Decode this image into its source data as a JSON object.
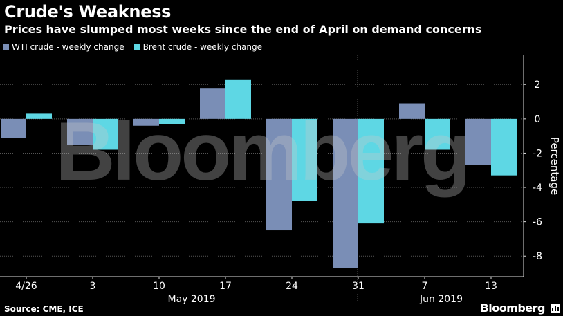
{
  "header": {
    "title": "Crude's Weakness",
    "subtitle": "Prices have slumped most weeks since the end of April on demand concerns"
  },
  "legend": {
    "wti_label": "WTI crude - weekly change",
    "brent_label": "Brent crude - weekly change"
  },
  "footer": {
    "source": "Source: CME, ICE",
    "brand": "Bloomberg",
    "watermark": "Bloomberg"
  },
  "colors": {
    "wti": "#7a8eb6",
    "brent": "#5ed7e4",
    "background": "#000000",
    "grid": "#555555"
  },
  "chart_data": {
    "type": "bar",
    "categories": [
      "4/26",
      "3",
      "10",
      "17",
      "24",
      "31",
      "7",
      "13"
    ],
    "month_labels": [
      "May 2019",
      "Jun 2019"
    ],
    "series": [
      {
        "name": "WTI crude - weekly change",
        "values": [
          -1.1,
          -1.5,
          -0.4,
          1.8,
          -6.5,
          -8.7,
          0.9,
          -2.7
        ]
      },
      {
        "name": "Brent crude - weekly change",
        "values": [
          0.3,
          -1.8,
          -0.3,
          2.3,
          -4.8,
          -6.1,
          -1.8,
          -3.3
        ]
      }
    ],
    "ylabel": "Percentage",
    "ylim": [
      -9.2,
      3.3
    ],
    "yticks": [
      2,
      0,
      -2,
      -4,
      -6,
      -8
    ],
    "grid": true,
    "legend_position": "top-left"
  }
}
